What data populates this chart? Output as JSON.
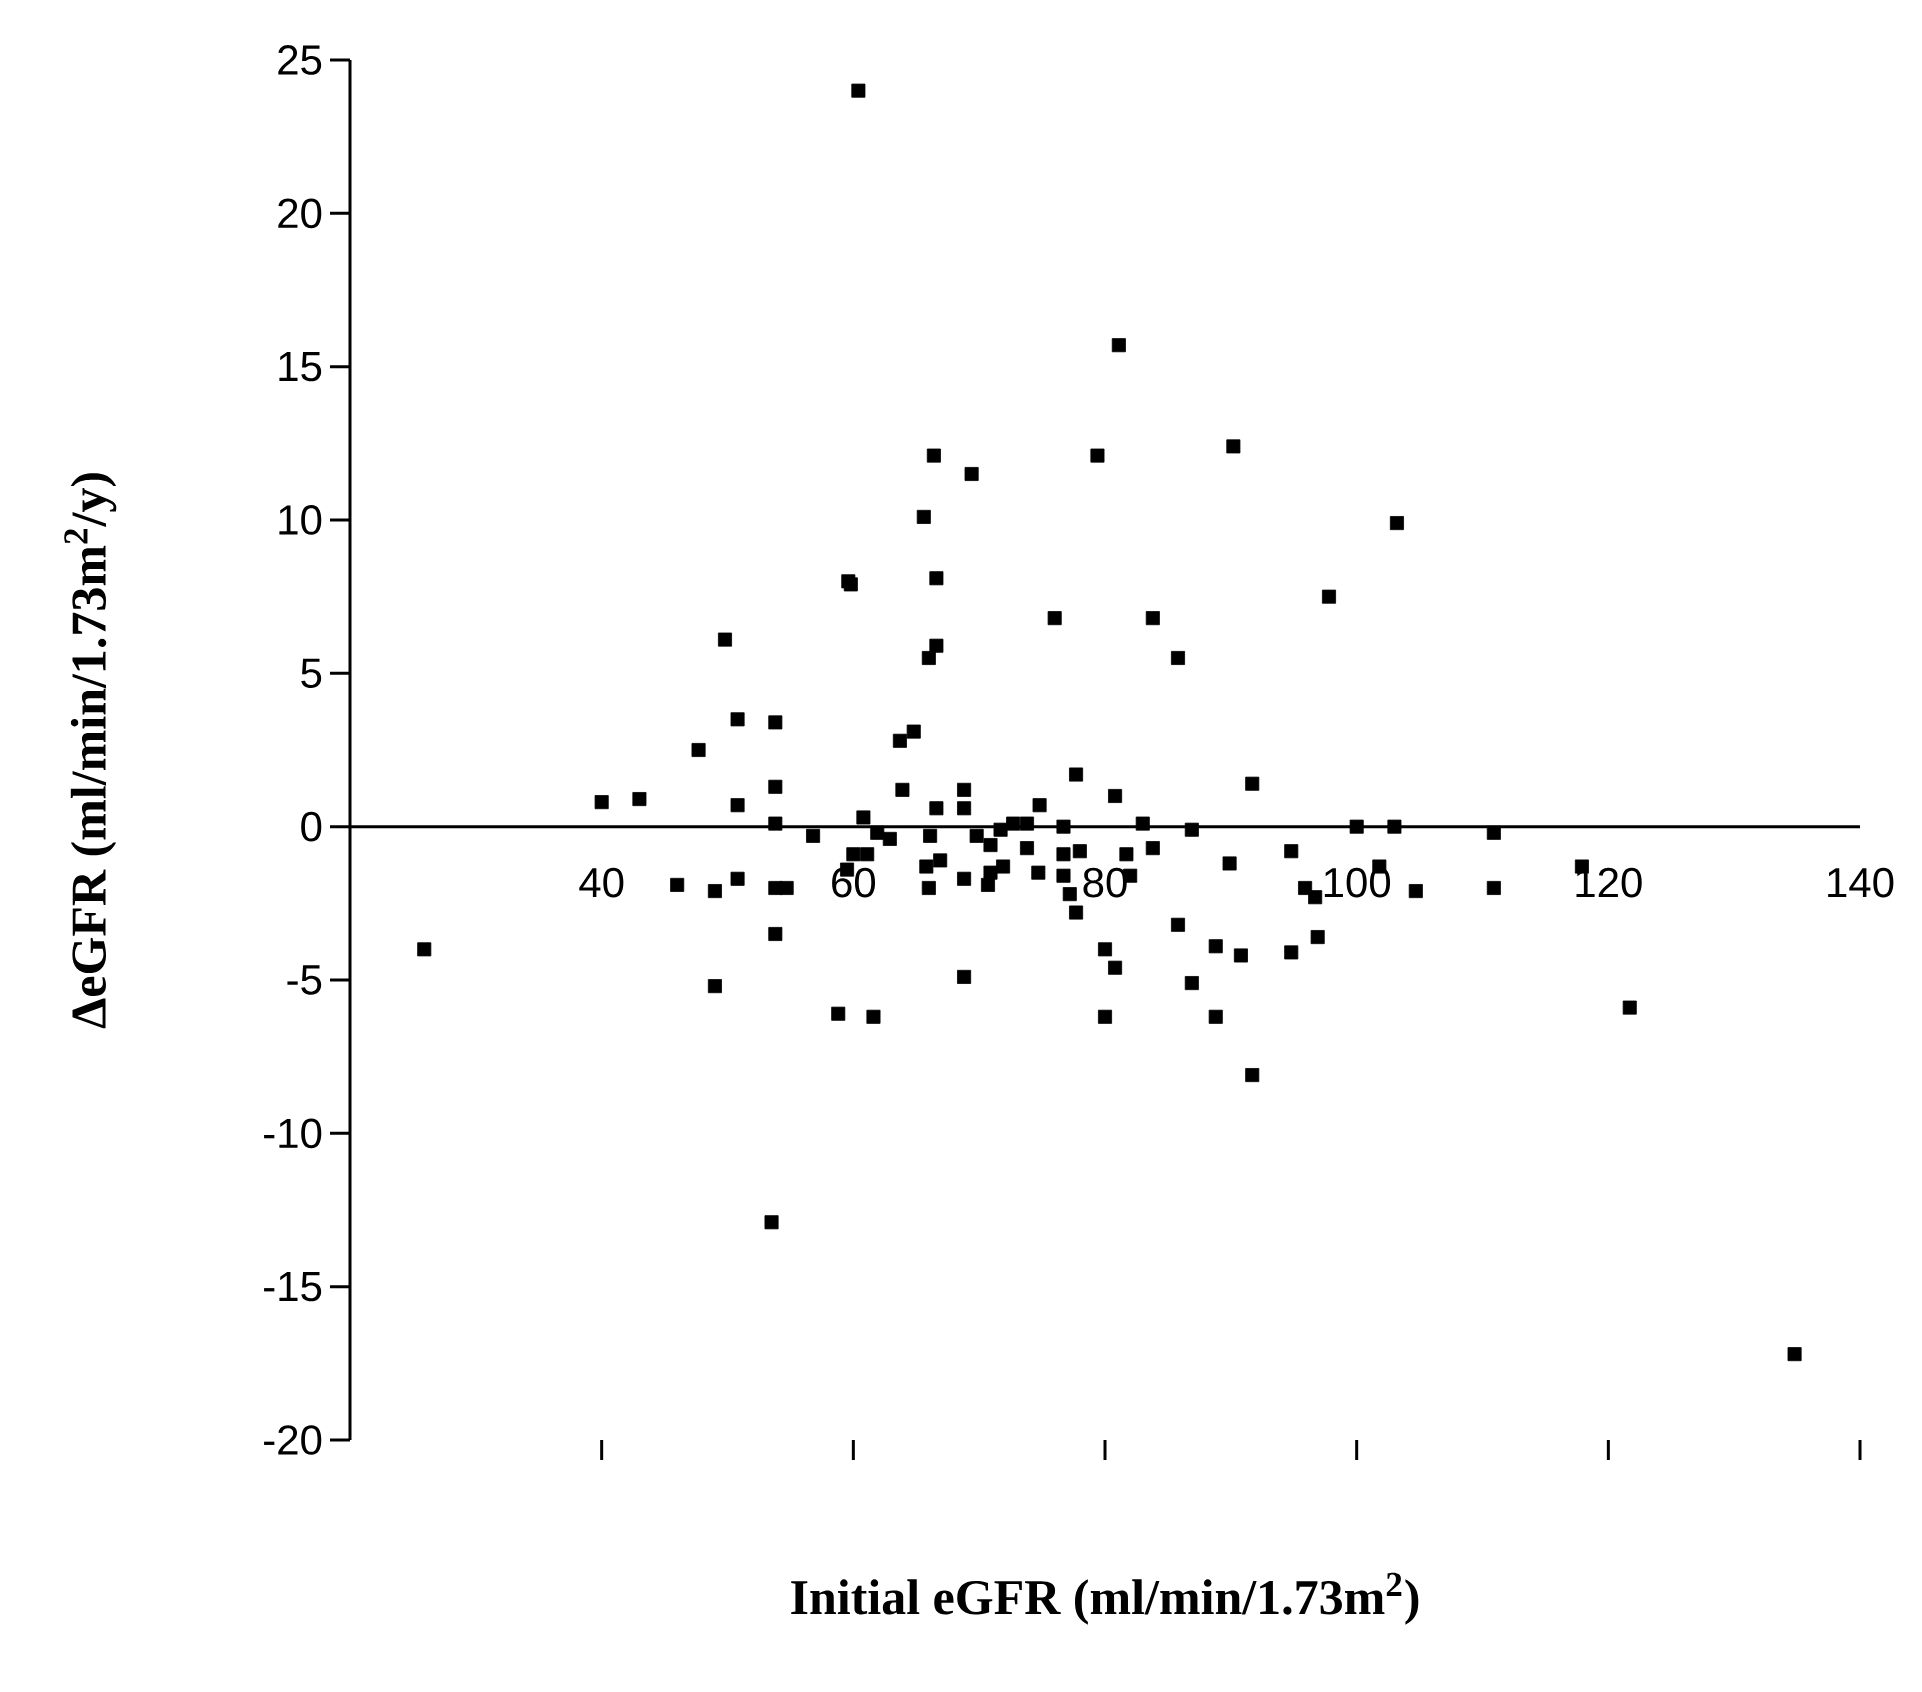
{
  "chart_data": {
    "type": "scatter",
    "xlabel": "Initial eGFR (ml/min/1.73m$^{2}$)",
    "ylabel": "ΔeGFR (ml/min/1.73m$^{2}$/y)",
    "xlim": [
      20,
      140
    ],
    "ylim": [
      -20,
      25
    ],
    "xticks": [
      40,
      60,
      80,
      100,
      120,
      140
    ],
    "yticks": [
      -20,
      -15,
      -10,
      -5,
      0,
      5,
      10,
      15,
      20,
      25
    ],
    "marker": "square",
    "grid": false,
    "series": [
      {
        "color": "#000000",
        "x": [
          25.9,
          40.0,
          43.0,
          46.0,
          47.7,
          49.0,
          49.0,
          49.8,
          50.8,
          50.8,
          50.8,
          53.8,
          53.8,
          53.8,
          53.8,
          54.7,
          53.8,
          53.5,
          56.8,
          58.8,
          61.6,
          59.8,
          60.8,
          61.9,
          60.0,
          61.1,
          59.5,
          62.9,
          63.9,
          63.7,
          64.8,
          66.0,
          66.6,
          66.6,
          66.1,
          66.0,
          66.6,
          66.9,
          65.8,
          65.6,
          66.4,
          69.4,
          59.6,
          60.4,
          81.1,
          79.4,
          90.2,
          103.2,
          97.8,
          76.0,
          83.8,
          85.8,
          68.8,
          68.8,
          68.8,
          68.8,
          69.8,
          70.9,
          71.7,
          72.7,
          73.8,
          74.8,
          70.9,
          71.9,
          70.7,
          73.8,
          74.7,
          76.7,
          76.7,
          76.7,
          77.2,
          77.7,
          77.7,
          78.0,
          80.8,
          81.7,
          82.0,
          83.0,
          83.8,
          80.0,
          80.8,
          80.0,
          86.9,
          89.9,
          85.8,
          86.9,
          88.8,
          88.8,
          90.8,
          91.7,
          91.7,
          94.8,
          94.8,
          96.9,
          95.9,
          96.7,
          100.0,
          103.0,
          101.8,
          104.7,
          110.9,
          110.9,
          117.9,
          121.7,
          134.8
        ],
        "values": [
          -4.0,
          0.8,
          0.9,
          -1.9,
          2.5,
          -2.1,
          -5.2,
          6.1,
          3.5,
          0.7,
          -1.7,
          3.4,
          1.3,
          0.1,
          -2.0,
          -2.0,
          -3.5,
          -12.9,
          -0.3,
          -6.1,
          -6.2,
          7.9,
          0.3,
          -0.2,
          -0.9,
          -0.9,
          -1.4,
          -0.4,
          1.2,
          2.8,
          3.1,
          5.5,
          5.9,
          8.1,
          -0.3,
          -2.0,
          0.6,
          -1.1,
          -1.3,
          10.1,
          12.1,
          11.5,
          8.0,
          24.0,
          15.7,
          12.1,
          12.4,
          9.9,
          7.5,
          6.8,
          6.8,
          5.5,
          1.2,
          0.6,
          -1.7,
          -4.9,
          -0.3,
          -0.6,
          -0.1,
          0.1,
          0.1,
          0.7,
          -1.5,
          -1.3,
          -1.9,
          -0.7,
          -1.5,
          0.0,
          -0.9,
          -1.6,
          -2.2,
          -2.8,
          1.7,
          -0.8,
          1.0,
          -0.9,
          -1.6,
          0.1,
          -0.7,
          -4.0,
          -4.6,
          -6.2,
          -0.1,
          -1.2,
          -3.2,
          -5.1,
          -3.9,
          -6.2,
          -4.2,
          -8.1,
          1.4,
          -0.8,
          -4.1,
          -3.6,
          -2.0,
          -2.3,
          0.0,
          0.0,
          -1.3,
          -2.1,
          -0.2,
          -2.0,
          -1.3,
          -5.9,
          -17.2
        ]
      }
    ]
  }
}
